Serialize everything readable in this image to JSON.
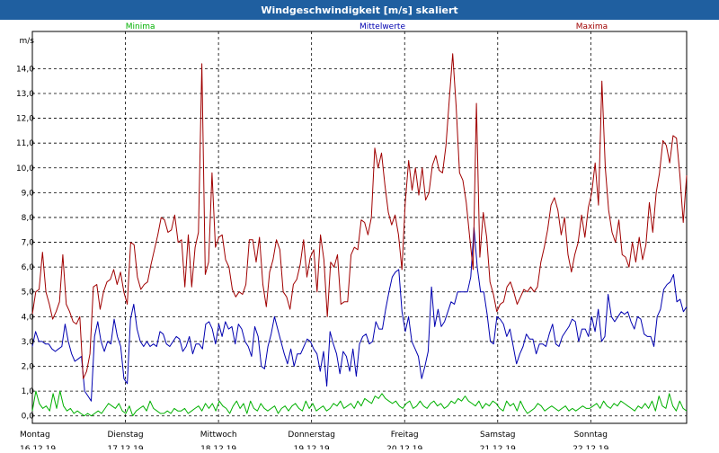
{
  "window": {
    "title": "Windgeschwindigkeit [m/s] skaliert"
  },
  "chart_data": {
    "type": "line",
    "ylabel": "m/s",
    "ylim": [
      -0.3,
      15.5
    ],
    "yticks": [
      0.0,
      1.0,
      2.0,
      3.0,
      4.0,
      5.0,
      6.0,
      7.0,
      8.0,
      9.0,
      10.0,
      11.0,
      12.0,
      13.0,
      14.0
    ],
    "ytick_labels": [
      "0,0",
      "1,0",
      "2,0",
      "3,0",
      "4,0",
      "5,0",
      "6,0",
      "7,0",
      "8,0",
      "9,0",
      "10,0",
      "11,0",
      "12,0",
      "13,0",
      "14,0"
    ],
    "xlim": [
      0,
      7.03
    ],
    "xticks": [
      {
        "x": 0,
        "day": "Montag",
        "date": "16.12.19"
      },
      {
        "x": 1,
        "day": "Dienstag",
        "date": "17.12.19"
      },
      {
        "x": 2,
        "day": "Mittwoch",
        "date": "18.12.19"
      },
      {
        "x": 3,
        "day": "Donnerstag",
        "date": "19.12.19"
      },
      {
        "x": 4,
        "day": "Freitag",
        "date": "20.12.19"
      },
      {
        "x": 5,
        "day": "Samstag",
        "date": "21.12.19"
      },
      {
        "x": 6,
        "day": "Sonntag",
        "date": "22.12.19"
      }
    ],
    "grid": true,
    "legend_position": "top",
    "series": [
      {
        "name": "Minima",
        "color": "#00b000",
        "y": [
          0.2,
          1.0,
          0.5,
          0.3,
          0.4,
          0.2,
          0.9,
          0.3,
          1.0,
          0.4,
          0.2,
          0.3,
          0.1,
          0.2,
          0.1,
          0.0,
          0.1,
          0.0,
          0.1,
          0.2,
          0.1,
          0.3,
          0.5,
          0.4,
          0.3,
          0.5,
          0.2,
          0.1,
          0.4,
          0.0,
          0.2,
          0.3,
          0.4,
          0.2,
          0.6,
          0.3,
          0.2,
          0.1,
          0.1,
          0.2,
          0.1,
          0.3,
          0.2,
          0.2,
          0.3,
          0.1,
          0.2,
          0.3,
          0.4,
          0.2,
          0.5,
          0.3,
          0.5,
          0.2,
          0.6,
          0.4,
          0.3,
          0.1,
          0.4,
          0.6,
          0.3,
          0.5,
          0.1,
          0.6,
          0.3,
          0.2,
          0.5,
          0.3,
          0.2,
          0.3,
          0.4,
          0.1,
          0.3,
          0.4,
          0.2,
          0.4,
          0.5,
          0.3,
          0.2,
          0.6,
          0.3,
          0.5,
          0.2,
          0.3,
          0.4,
          0.2,
          0.3,
          0.5,
          0.4,
          0.6,
          0.3,
          0.4,
          0.5,
          0.3,
          0.6,
          0.4,
          0.7,
          0.6,
          0.5,
          0.8,
          0.7,
          0.9,
          0.7,
          0.6,
          0.5,
          0.6,
          0.4,
          0.3,
          0.5,
          0.6,
          0.3,
          0.4,
          0.6,
          0.4,
          0.3,
          0.5,
          0.6,
          0.4,
          0.5,
          0.3,
          0.4,
          0.6,
          0.5,
          0.7,
          0.6,
          0.8,
          0.6,
          0.5,
          0.4,
          0.6,
          0.3,
          0.5,
          0.4,
          0.6,
          0.5,
          0.3,
          0.2,
          0.6,
          0.4,
          0.5,
          0.2,
          0.6,
          0.3,
          0.1,
          0.2,
          0.3,
          0.5,
          0.4,
          0.2,
          0.3,
          0.4,
          0.3,
          0.2,
          0.3,
          0.4,
          0.2,
          0.3,
          0.2,
          0.3,
          0.4,
          0.3,
          0.3,
          0.4,
          0.5,
          0.3,
          0.6,
          0.4,
          0.3,
          0.5,
          0.4,
          0.6,
          0.5,
          0.4,
          0.3,
          0.2,
          0.4,
          0.3,
          0.5,
          0.3,
          0.6,
          0.2,
          0.8,
          0.4,
          0.3,
          0.9,
          0.4,
          0.2,
          0.6,
          0.3,
          0.2
        ]
      },
      {
        "name": "Mittelwerte",
        "color": "#0000b0",
        "y": [
          2.8,
          3.4,
          3.0,
          3.0,
          2.9,
          2.9,
          2.7,
          2.6,
          2.7,
          2.8,
          3.7,
          3.0,
          2.5,
          2.2,
          2.3,
          2.4,
          1.0,
          0.8,
          0.6,
          3.2,
          3.8,
          3.0,
          2.6,
          3.0,
          2.9,
          3.9,
          3.2,
          2.8,
          1.5,
          1.3,
          3.9,
          4.5,
          3.5,
          3.0,
          2.8,
          3.0,
          2.8,
          2.9,
          2.8,
          3.4,
          3.3,
          2.9,
          2.8,
          3.0,
          3.2,
          3.1,
          2.6,
          2.8,
          3.2,
          2.5,
          2.9,
          2.9,
          2.7,
          3.7,
          3.8,
          3.5,
          2.9,
          3.7,
          3.2,
          3.8,
          3.5,
          3.6,
          2.9,
          3.7,
          3.5,
          3.0,
          2.8,
          2.4,
          3.6,
          3.2,
          2.0,
          1.9,
          2.8,
          3.3,
          4.0,
          3.5,
          3.0,
          2.5,
          2.1,
          2.7,
          2.0,
          2.5,
          2.5,
          2.8,
          3.1,
          3.0,
          2.7,
          2.5,
          1.8,
          2.6,
          1.2,
          3.4,
          2.9,
          2.5,
          1.7,
          2.6,
          2.4,
          1.8,
          2.7,
          1.6,
          2.9,
          3.2,
          3.3,
          2.9,
          3.0,
          3.8,
          3.5,
          3.5,
          4.3,
          5.0,
          5.6,
          5.8,
          5.9,
          4.2,
          3.4,
          4.0,
          3.0,
          2.7,
          2.4,
          1.5,
          2.0,
          2.6,
          5.2,
          3.6,
          4.3,
          3.6,
          3.8,
          4.2,
          4.6,
          4.5,
          5.0,
          5.0,
          5.0,
          5.0,
          5.6,
          7.6,
          6.0,
          5.0,
          5.0,
          4.1,
          3.0,
          2.9,
          4.0,
          3.9,
          3.7,
          3.2,
          3.5,
          2.8,
          2.1,
          2.5,
          2.8,
          3.3,
          3.1,
          3.1,
          2.5,
          2.9,
          2.9,
          2.8,
          3.3,
          3.7,
          2.9,
          2.8,
          3.2,
          3.4,
          3.6,
          3.9,
          3.8,
          3.0,
          3.5,
          3.5,
          3.2,
          4.0,
          3.4,
          4.3,
          3.0,
          3.2,
          4.9,
          4.0,
          3.8,
          4.0,
          4.2,
          4.1,
          4.2,
          3.8,
          3.5,
          4.0,
          3.9,
          3.3,
          3.2,
          3.2,
          2.8,
          4.0,
          4.3,
          5.1,
          5.3,
          5.4,
          5.7,
          4.6,
          4.7,
          4.2,
          4.4
        ]
      },
      {
        "name": "Maxima",
        "color": "#a00000",
        "y": [
          4.1,
          5.0,
          5.1,
          6.6,
          5.0,
          4.5,
          3.9,
          4.2,
          4.6,
          6.5,
          4.5,
          4.2,
          3.8,
          3.7,
          4.0,
          1.5,
          1.8,
          2.5,
          5.2,
          5.3,
          4.3,
          5.0,
          5.4,
          5.5,
          5.9,
          5.3,
          5.8,
          5.0,
          4.5,
          7.0,
          6.9,
          5.6,
          5.1,
          5.3,
          5.4,
          6.1,
          6.7,
          7.3,
          8.0,
          7.9,
          7.4,
          7.5,
          8.1,
          7.0,
          7.1,
          5.2,
          7.3,
          5.2,
          6.8,
          7.4,
          14.2,
          5.7,
          6.2,
          9.8,
          6.8,
          7.2,
          7.3,
          6.3,
          6.0,
          5.1,
          4.8,
          5.0,
          4.9,
          5.3,
          7.1,
          7.1,
          6.2,
          7.2,
          5.3,
          4.4,
          5.8,
          6.3,
          7.1,
          6.7,
          5.0,
          4.8,
          4.3,
          5.3,
          5.5,
          6.1,
          7.1,
          5.6,
          6.4,
          6.7,
          5.0,
          7.3,
          6.3,
          4.0,
          6.2,
          6.0,
          6.5,
          4.5,
          4.6,
          4.6,
          6.5,
          6.8,
          6.7,
          7.9,
          7.8,
          7.3,
          8.0,
          10.8,
          10.0,
          10.6,
          9.3,
          8.2,
          7.7,
          8.1,
          7.3,
          5.9,
          8.6,
          10.3,
          9.1,
          10.0,
          8.9,
          10.0,
          8.7,
          9.0,
          10.1,
          10.5,
          9.9,
          9.8,
          10.9,
          12.8,
          14.6,
          12.5,
          9.8,
          9.5,
          8.6,
          7.2,
          5.9,
          12.6,
          6.4,
          8.2,
          7.2,
          5.4,
          4.9,
          4.2,
          4.5,
          4.6,
          5.2,
          5.4,
          5.0,
          4.5,
          4.8,
          5.1,
          5.0,
          5.2,
          5.0,
          5.2,
          6.2,
          6.8,
          7.5,
          8.5,
          8.8,
          8.3,
          7.3,
          8.0,
          6.5,
          5.8,
          6.5,
          7.0,
          8.1,
          7.2,
          8.4,
          9.0,
          10.2,
          8.5,
          13.5,
          10.0,
          8.3,
          7.4,
          7.0,
          7.9,
          6.5,
          6.4,
          6.0,
          7.0,
          6.2,
          7.2,
          6.3,
          6.9,
          8.6,
          7.4,
          9.0,
          9.8,
          11.1,
          10.9,
          10.2,
          11.3,
          11.2,
          9.7,
          7.8,
          9.7
        ]
      }
    ]
  }
}
